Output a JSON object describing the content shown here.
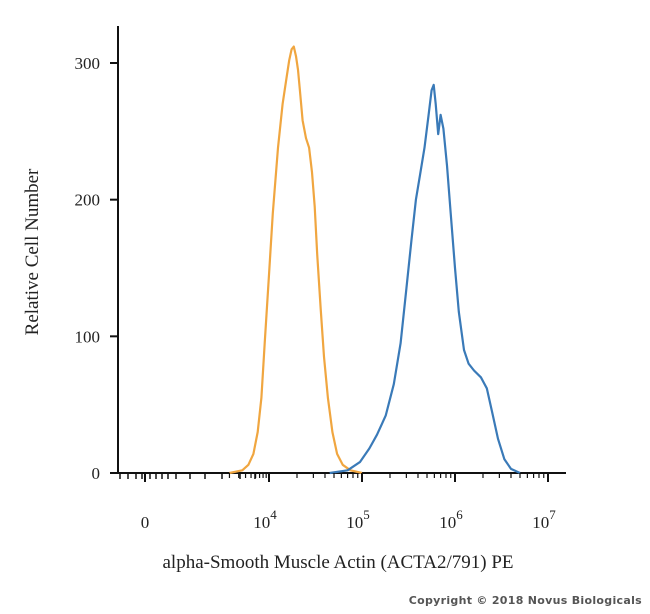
{
  "chart_data": {
    "type": "line",
    "title": "",
    "xlabel": "alpha-Smooth Muscle Actin (ACTA2/791) PE",
    "ylabel": "Relative Cell Number",
    "xscale": "biexponential (log above 10^3)",
    "ylim": [
      0,
      330
    ],
    "grid": false,
    "legend": "none",
    "y_ticks": [
      {
        "value": 0,
        "label": "0"
      },
      {
        "value": 100,
        "label": "100"
      },
      {
        "value": 200,
        "label": "200"
      },
      {
        "value": 300,
        "label": "300"
      }
    ],
    "x_ticks": [
      {
        "value": 0,
        "base": "0",
        "exp": ""
      },
      {
        "value": 10000,
        "base": "10",
        "exp": "4"
      },
      {
        "value": 100000,
        "base": "10",
        "exp": "5"
      },
      {
        "value": 1000000,
        "base": "10",
        "exp": "6"
      },
      {
        "value": 10000000,
        "base": "10",
        "exp": "7"
      }
    ],
    "series": [
      {
        "color": "#f0a640",
        "points": [
          [
            2000,
            0
          ],
          [
            3500,
            2
          ],
          [
            4500,
            6
          ],
          [
            5500,
            14
          ],
          [
            6500,
            30
          ],
          [
            7500,
            55
          ],
          [
            8500,
            95
          ],
          [
            10000,
            145
          ],
          [
            11000,
            190
          ],
          [
            12500,
            238
          ],
          [
            14000,
            270
          ],
          [
            15500,
            290
          ],
          [
            16500,
            302
          ],
          [
            17500,
            310
          ],
          [
            18500,
            312
          ],
          [
            19500,
            305
          ],
          [
            20500,
            295
          ],
          [
            21500,
            280
          ],
          [
            23000,
            258
          ],
          [
            25000,
            245
          ],
          [
            27000,
            238
          ],
          [
            29000,
            220
          ],
          [
            31000,
            195
          ],
          [
            33000,
            160
          ],
          [
            36000,
            120
          ],
          [
            39000,
            85
          ],
          [
            43000,
            55
          ],
          [
            48000,
            30
          ],
          [
            54000,
            14
          ],
          [
            62000,
            6
          ],
          [
            75000,
            2
          ],
          [
            100000,
            0
          ]
        ]
      },
      {
        "color": "#3a7ab8",
        "points": [
          [
            45000,
            0
          ],
          [
            70000,
            2
          ],
          [
            95000,
            8
          ],
          [
            120000,
            18
          ],
          [
            145000,
            28
          ],
          [
            180000,
            42
          ],
          [
            220000,
            65
          ],
          [
            260000,
            95
          ],
          [
            300000,
            135
          ],
          [
            340000,
            170
          ],
          [
            380000,
            200
          ],
          [
            420000,
            218
          ],
          [
            470000,
            238
          ],
          [
            520000,
            262
          ],
          [
            560000,
            280
          ],
          [
            590000,
            284
          ],
          [
            620000,
            270
          ],
          [
            660000,
            248
          ],
          [
            700000,
            262
          ],
          [
            750000,
            252
          ],
          [
            820000,
            225
          ],
          [
            900000,
            190
          ],
          [
            1000000,
            150
          ],
          [
            1100000,
            118
          ],
          [
            1250000,
            90
          ],
          [
            1400000,
            80
          ],
          [
            1600000,
            75
          ],
          [
            1900000,
            70
          ],
          [
            2200000,
            62
          ],
          [
            2500000,
            45
          ],
          [
            2900000,
            25
          ],
          [
            3400000,
            10
          ],
          [
            4000000,
            3
          ],
          [
            5000000,
            0
          ]
        ]
      }
    ]
  },
  "footer": {
    "copyright": "Copyright © 2018 Novus Biologicals"
  }
}
